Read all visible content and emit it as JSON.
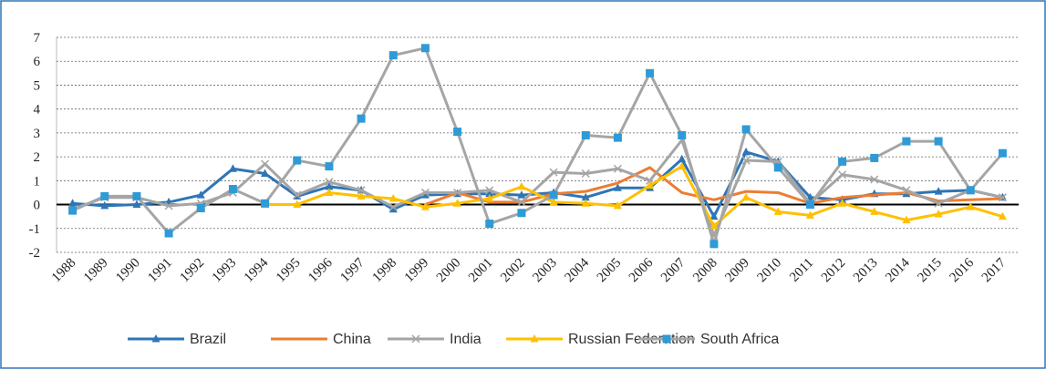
{
  "chart_data": {
    "type": "line",
    "categories": [
      "1988",
      "1989",
      "1990",
      "1991",
      "1992",
      "1993",
      "1994",
      "1995",
      "1996",
      "1997",
      "1998",
      "1999",
      "2000",
      "2001",
      "2002",
      "2003",
      "2004",
      "2005",
      "2006",
      "2007",
      "2008",
      "2009",
      "2010",
      "2011",
      "2012",
      "2013",
      "2014",
      "2015",
      "2016",
      "2017"
    ],
    "ylim": [
      -2,
      7
    ],
    "yticks": [
      -2,
      -1,
      0,
      1,
      2,
      3,
      4,
      5,
      6,
      7
    ],
    "grid": true,
    "legend": "bottom",
    "series": [
      {
        "name": "Brazil",
        "color": "#2e75b6",
        "marker": "triangle",
        "values": [
          0.05,
          -0.05,
          0,
          0.1,
          0.4,
          1.5,
          1.3,
          0.35,
          0.75,
          0.6,
          -0.2,
          0.4,
          0.45,
          0.45,
          0.4,
          0.5,
          0.3,
          0.7,
          0.7,
          1.9,
          -0.5,
          2.2,
          1.8,
          0.3,
          0.2,
          0.45,
          0.45,
          0.55,
          0.6,
          0.3
        ]
      },
      {
        "name": "China",
        "color": "#ed7d31",
        "marker": "none",
        "values": [
          null,
          null,
          null,
          null,
          null,
          null,
          null,
          null,
          null,
          null,
          null,
          0.0,
          0.5,
          0.1,
          0.1,
          0.45,
          0.55,
          0.9,
          1.55,
          0.5,
          0.2,
          0.55,
          0.5,
          0.05,
          0.3,
          0.4,
          0.5,
          0.15,
          0.2,
          0.25
        ]
      },
      {
        "name": "India",
        "color": "#a5a5a5",
        "marker": "x",
        "values": [
          -0.2,
          0.3,
          0.3,
          -0.05,
          0.05,
          0.5,
          1.7,
          0.4,
          0.95,
          0.6,
          -0.1,
          0.5,
          0.5,
          0.6,
          0.1,
          1.35,
          1.3,
          1.5,
          1.0,
          2.7,
          -1.3,
          1.85,
          1.8,
          0.05,
          1.25,
          1.05,
          0.6,
          0.05,
          0.6,
          0.3
        ]
      },
      {
        "name": "Russian Federation",
        "color": "#ffc000",
        "marker": "triangle",
        "values": [
          null,
          null,
          null,
          null,
          null,
          null,
          0.0,
          0.0,
          0.5,
          0.35,
          0.25,
          -0.1,
          0.05,
          0.25,
          0.75,
          0.1,
          0.05,
          -0.05,
          0.8,
          1.6,
          -0.9,
          0.3,
          -0.3,
          -0.45,
          0.05,
          -0.3,
          -0.65,
          -0.4,
          -0.1,
          -0.5
        ]
      },
      {
        "name": "South Africa",
        "color": "#a5a5a5",
        "marker": "square",
        "marker_color": "#2e9bd6",
        "values": [
          -0.25,
          0.35,
          0.35,
          -1.2,
          -0.15,
          0.65,
          0.05,
          1.85,
          1.6,
          3.6,
          6.25,
          6.55,
          3.05,
          -0.8,
          -0.35,
          0.4,
          2.9,
          2.8,
          5.5,
          2.9,
          -1.65,
          3.15,
          1.55,
          0.0,
          1.8,
          1.95,
          2.65,
          2.65,
          0.6,
          2.15
        ]
      }
    ]
  }
}
